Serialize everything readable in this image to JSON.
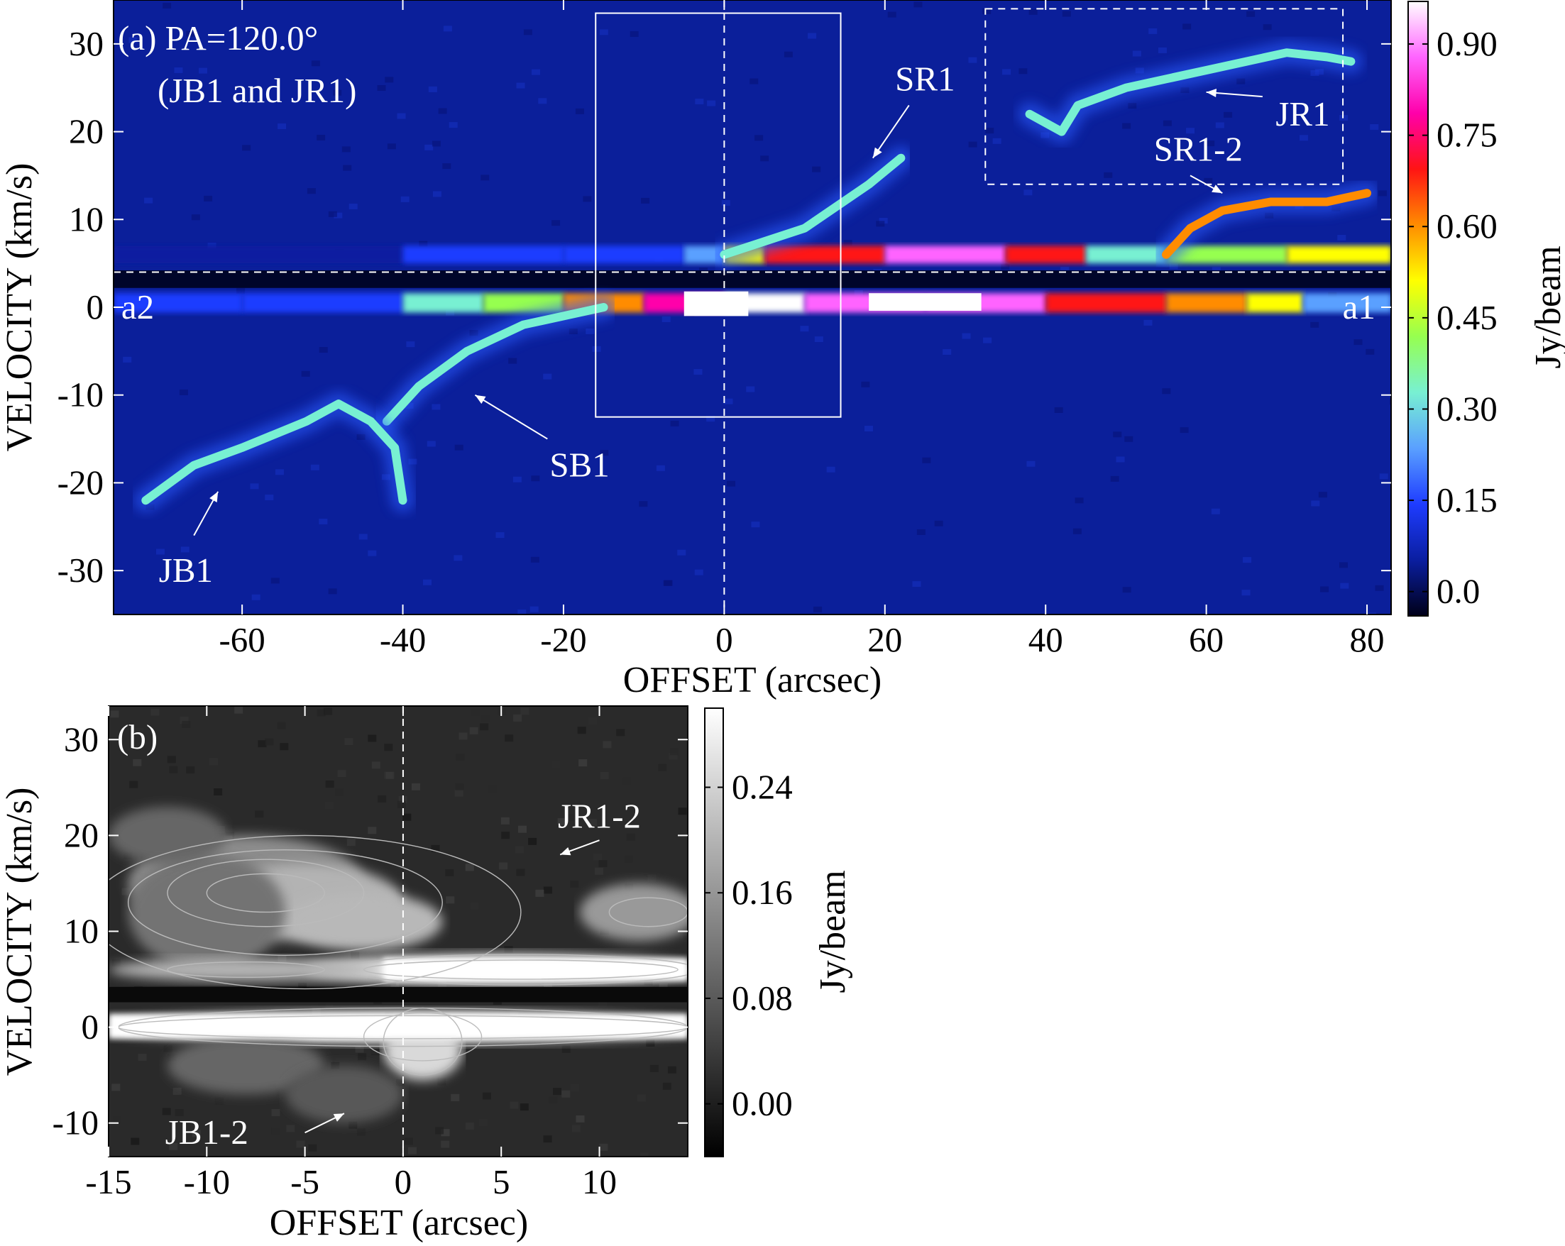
{
  "chart_data": [
    {
      "type": "heatmap",
      "panel_label": "(a) PA=120.0°",
      "subtitle": "(JB1 and JR1)",
      "xlabel": "OFFSET (arcsec)",
      "ylabel": "VELOCITY (km/s)",
      "xlim": [
        -76,
        83
      ],
      "ylim": [
        -35,
        35
      ],
      "xticks": [
        "-60",
        "-40",
        "-20",
        "0",
        "20",
        "40",
        "60",
        "80"
      ],
      "xtick_values": [
        -60,
        -40,
        -20,
        0,
        20,
        40,
        60,
        80
      ],
      "yticks": [
        "30",
        "20",
        "10",
        "0",
        "-10",
        "-20",
        "-30"
      ],
      "ytick_values": [
        30,
        20,
        10,
        0,
        -10,
        -20,
        -30
      ],
      "colorbar": {
        "label": "Jy/beam",
        "ticks": [
          "0.90",
          "0.75",
          "0.60",
          "0.45",
          "0.30",
          "0.15",
          "0.0"
        ],
        "tick_values": [
          0.9,
          0.75,
          0.6,
          0.45,
          0.3,
          0.15,
          0.0
        ],
        "range": [
          -0.04,
          0.97
        ],
        "colormap": [
          "#000018",
          "#0a1ea0",
          "#1e3cff",
          "#5aa0ff",
          "#78f0d2",
          "#96ff50",
          "#ffff00",
          "#ff8c00",
          "#ff1414",
          "#ff00aa",
          "#ff64ff",
          "#ffffff"
        ]
      },
      "annotations": [
        {
          "text": "SR1",
          "x": 25,
          "y": 26
        },
        {
          "text": "JR1",
          "x": 72,
          "y": 22
        },
        {
          "text": "SR1-2",
          "x": 59,
          "y": 18
        },
        {
          "text": "SB1",
          "x": -18,
          "y": -18
        },
        {
          "text": "JB1",
          "x": -67,
          "y": -30
        },
        {
          "text": "a2",
          "x": -73,
          "y": 0
        },
        {
          "text": "a1",
          "x": 79,
          "y": 0
        }
      ],
      "reference_lines": {
        "x": 0,
        "y": 4
      },
      "boxes": [
        {
          "style": "solid",
          "x": [
            -16,
            14.5
          ],
          "y": [
            -12.5,
            33.5
          ]
        },
        {
          "style": "dashed",
          "x": [
            32.5,
            77
          ],
          "y": [
            14,
            34
          ]
        }
      ],
      "features": [
        {
          "name": "SR1",
          "points": [
            [
              0,
              6
            ],
            [
              10,
              9
            ],
            [
              18,
              14
            ],
            [
              22,
              17
            ]
          ]
        },
        {
          "name": "JR1",
          "points": [
            [
              38,
              22
            ],
            [
              42,
              20
            ],
            [
              44,
              23
            ],
            [
              50,
              25
            ],
            [
              55,
              26
            ],
            [
              60,
              27
            ],
            [
              65,
              28
            ],
            [
              70,
              29
            ],
            [
              75,
              28.5
            ],
            [
              78,
              28
            ]
          ]
        },
        {
          "name": "SR1-2",
          "points": [
            [
              55,
              6
            ],
            [
              58,
              9
            ],
            [
              62,
              11
            ],
            [
              68,
              12
            ],
            [
              75,
              12
            ],
            [
              80,
              13
            ]
          ]
        },
        {
          "name": "SB1",
          "points": [
            [
              -15,
              0
            ],
            [
              -25,
              -2
            ],
            [
              -32,
              -5
            ],
            [
              -38,
              -9
            ],
            [
              -42,
              -13
            ]
          ]
        },
        {
          "name": "JB1",
          "points": [
            [
              -72,
              -22
            ],
            [
              -66,
              -18
            ],
            [
              -60,
              -16
            ],
            [
              -52,
              -13
            ],
            [
              -48,
              -11
            ],
            [
              -44,
              -13
            ],
            [
              -41,
              -16
            ],
            [
              -40,
              -22
            ]
          ]
        }
      ]
    },
    {
      "type": "heatmap",
      "panel_label": "(b)",
      "xlabel": "OFFSET (arcsec)",
      "ylabel": "VELOCITY (km/s)",
      "xlim": [
        -15,
        14.5
      ],
      "ylim": [
        -13.5,
        33.5
      ],
      "xticks": [
        "-15",
        "-10",
        "-5",
        "0",
        "5",
        "10"
      ],
      "xtick_values": [
        -15,
        -10,
        -5,
        0,
        5,
        10
      ],
      "yticks": [
        "30",
        "20",
        "10",
        "0",
        "-10"
      ],
      "ytick_values": [
        30,
        20,
        10,
        0,
        -10
      ],
      "colorbar": {
        "label": "Jy/beam",
        "ticks": [
          "0.24",
          "0.16",
          "0.08",
          "0.00"
        ],
        "tick_values": [
          0.24,
          0.16,
          0.08,
          0.0
        ],
        "range": [
          -0.04,
          0.3
        ],
        "colormap": [
          "#000000",
          "#ffffff"
        ]
      },
      "annotations": [
        {
          "text": "JR1-2",
          "x": 10,
          "y": 22
        },
        {
          "text": "JB1-2",
          "x": -10,
          "y": -11
        }
      ],
      "reference_lines": {
        "x": 0
      },
      "contours": true
    }
  ]
}
